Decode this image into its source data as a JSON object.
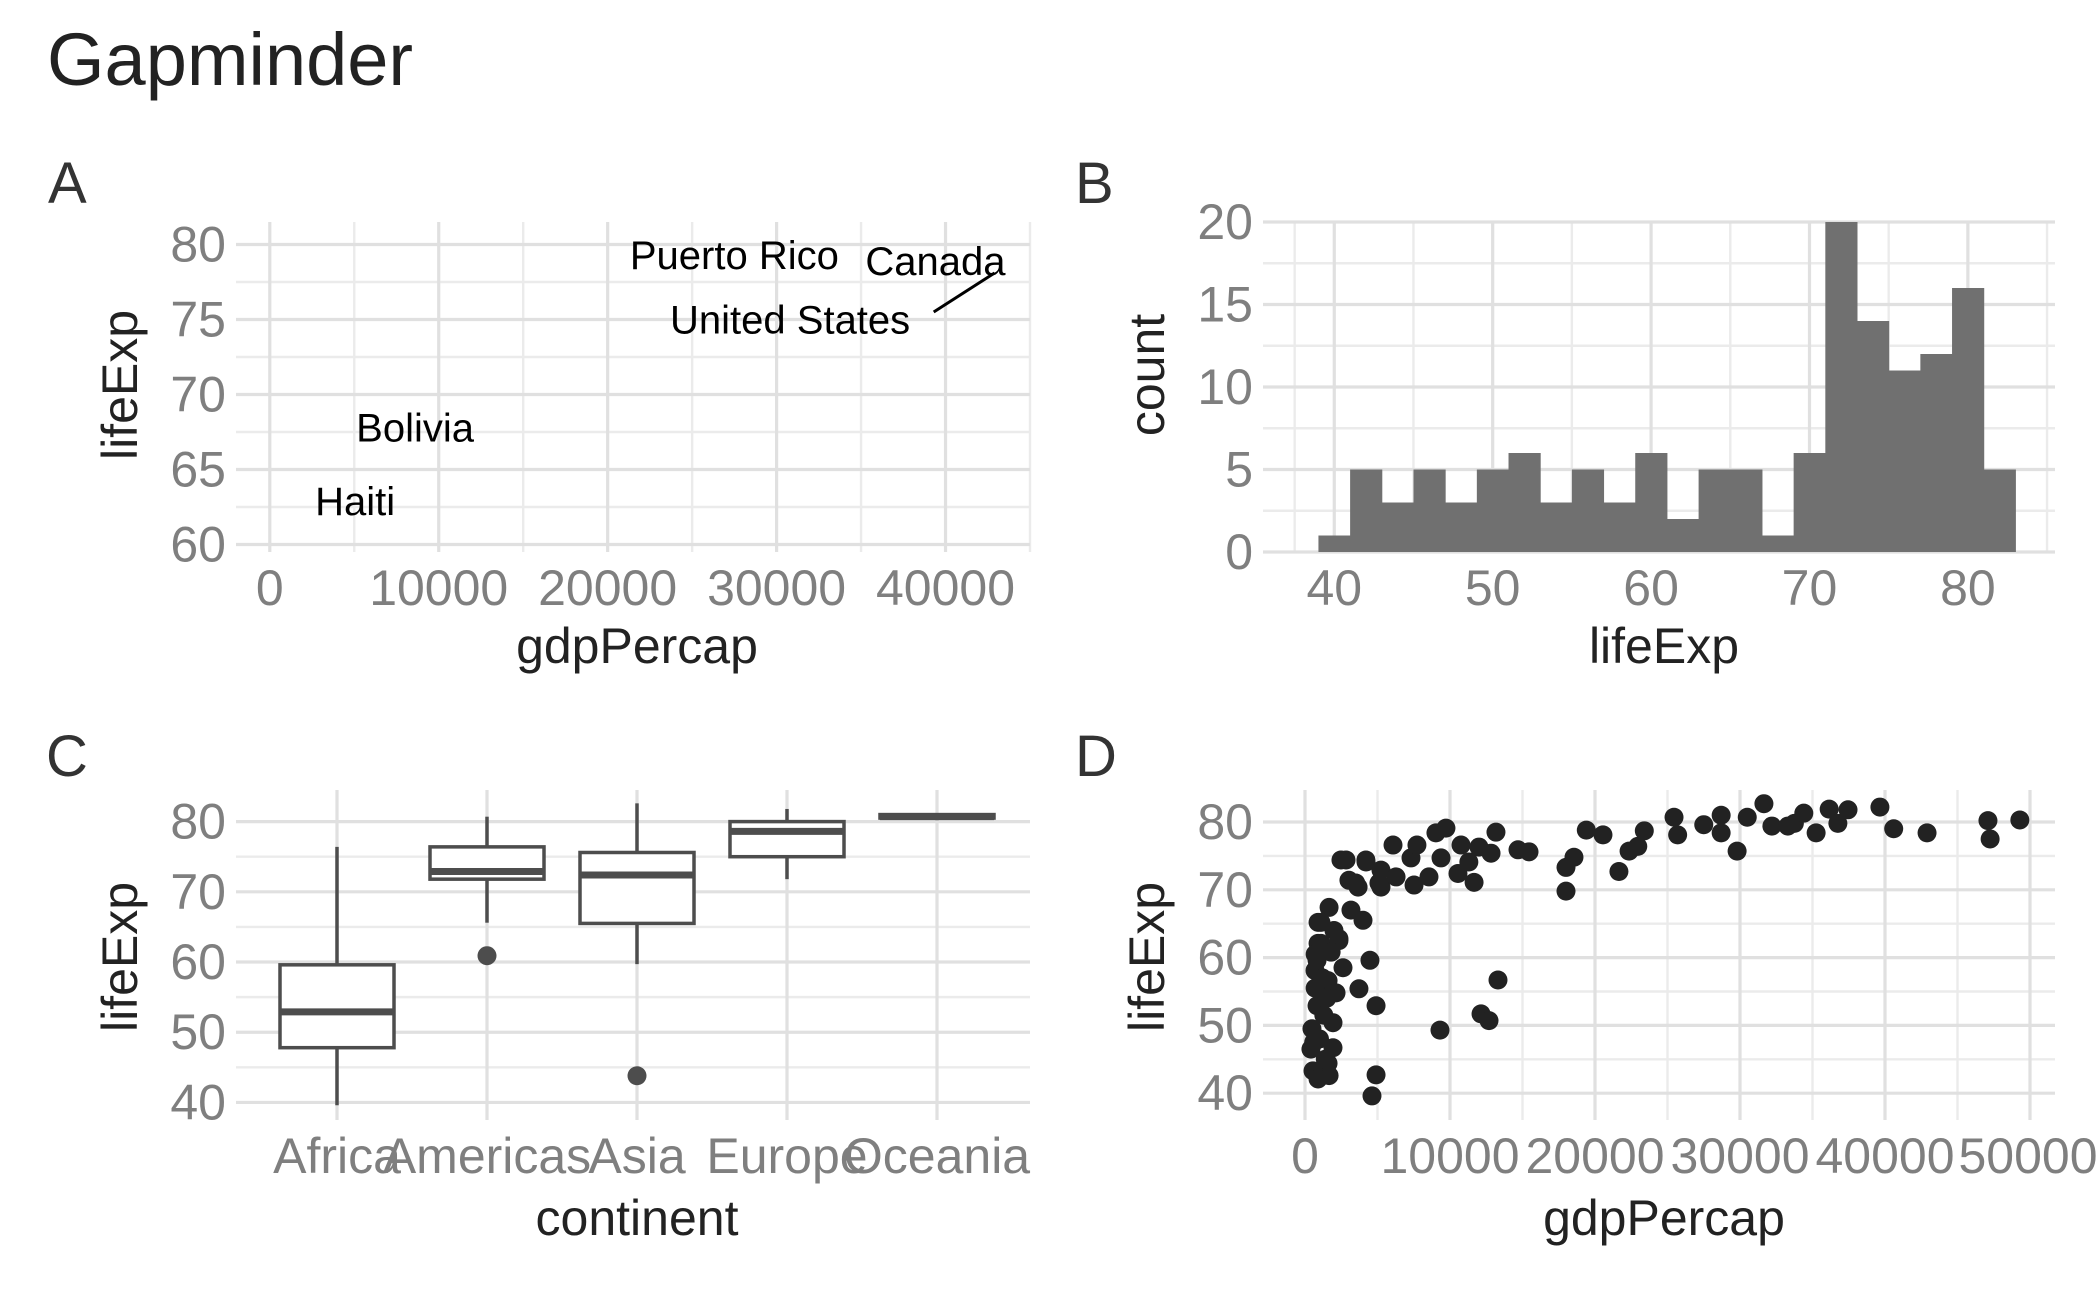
{
  "title": "Gapminder",
  "chart_data": [
    {
      "tag": "A",
      "type": "scatter",
      "subtype": "text-labels",
      "xlabel": "gdpPercap",
      "ylabel": "lifeExp",
      "xlim": [
        -2000,
        45000
      ],
      "ylim": [
        59.5,
        81.5
      ],
      "xticks": [
        0,
        10000,
        20000,
        30000,
        40000
      ],
      "xtick_labels": [
        "0",
        "10000",
        "20000",
        "30000",
        "40000"
      ],
      "yticks": [
        60,
        65,
        70,
        75,
        80
      ],
      "ytick_labels": [
        "60",
        "65",
        "70",
        "75",
        "80"
      ],
      "grid": true,
      "labels": [
        {
          "text": "Puerto Rico",
          "x": 27500,
          "y": 79.3
        },
        {
          "text": "Canada",
          "x": 39400,
          "y": 78.9
        },
        {
          "text": "United States",
          "x": 30800,
          "y": 75.0
        },
        {
          "text": "Bolivia",
          "x": 8600,
          "y": 67.8
        },
        {
          "text": "Haiti",
          "x": 5050,
          "y": 62.9
        }
      ],
      "segments": [
        {
          "from": [
            39300,
            75.5
          ],
          "to": [
            42900,
            78.1
          ]
        }
      ]
    },
    {
      "tag": "B",
      "type": "bar",
      "subtype": "histogram",
      "xlabel": "lifeExp",
      "ylabel": "count",
      "bin_width": 2,
      "bin_start": 39,
      "values": [
        1,
        5,
        3,
        5,
        3,
        5,
        6,
        3,
        5,
        3,
        6,
        2,
        5,
        5,
        1,
        6,
        20,
        14,
        11,
        12,
        16,
        5
      ],
      "xlim": [
        35.5,
        85.5
      ],
      "ylim": [
        0,
        20
      ],
      "xticks": [
        40,
        50,
        60,
        70,
        80
      ],
      "xtick_labels": [
        "40",
        "50",
        "60",
        "70",
        "80"
      ],
      "yticks": [
        0,
        5,
        10,
        15,
        20
      ],
      "ytick_labels": [
        "0",
        "5",
        "10",
        "15",
        "20"
      ],
      "grid": true,
      "fill": "#707070"
    },
    {
      "tag": "C",
      "type": "box",
      "xlabel": "continent",
      "ylabel": "lifeExp",
      "categories": [
        "Africa",
        "Americas",
        "Asia",
        "Europe",
        "Oceania"
      ],
      "boxes": [
        {
          "lower_whisker": 39.6,
          "q1": 47.8,
          "median": 52.9,
          "q3": 59.6,
          "upper_whisker": 76.4,
          "outliers": []
        },
        {
          "lower_whisker": 65.6,
          "q1": 71.8,
          "median": 72.9,
          "q3": 76.4,
          "upper_whisker": 80.7,
          "outliers": [
            60.9
          ]
        },
        {
          "lower_whisker": 59.7,
          "q1": 65.5,
          "median": 72.4,
          "q3": 75.6,
          "upper_whisker": 82.6,
          "outliers": [
            43.8
          ]
        },
        {
          "lower_whisker": 71.8,
          "q1": 75.0,
          "median": 78.6,
          "q3": 80.0,
          "upper_whisker": 81.8,
          "outliers": []
        },
        {
          "lower_whisker": 80.2,
          "q1": 80.5,
          "median": 80.7,
          "q3": 81.0,
          "upper_whisker": 81.2,
          "outliers": []
        }
      ],
      "ylim": [
        37.5,
        84.5
      ],
      "yticks": [
        40,
        50,
        60,
        70,
        80
      ],
      "ytick_labels": [
        "40",
        "50",
        "60",
        "70",
        "80"
      ],
      "grid": true,
      "color": "#4d4d4d"
    },
    {
      "tag": "D",
      "type": "scatter",
      "xlabel": "gdpPercap",
      "ylabel": "lifeExp",
      "xlim": [
        -2500,
        51500
      ],
      "ylim": [
        37.5,
        84.5
      ],
      "xticks": [
        0,
        10000,
        20000,
        30000,
        40000,
        50000
      ],
      "xtick_labels": [
        "0",
        "10000",
        "20000",
        "30000",
        "40000",
        "50000"
      ],
      "yticks": [
        40,
        50,
        60,
        70,
        80
      ],
      "ytick_labels": [
        "40",
        "50",
        "60",
        "70",
        "80"
      ],
      "grid": true,
      "color": "#222222",
      "points": [
        [
          19400,
          78.8
        ],
        [
          20550,
          78.1
        ],
        [
          18550,
          74.8
        ],
        [
          18000,
          73.3
        ],
        [
          18000,
          69.8
        ],
        [
          21650,
          72.7
        ],
        [
          22350,
          75.7
        ],
        [
          22950,
          76.4
        ],
        [
          23400,
          78.7
        ],
        [
          25450,
          80.7
        ],
        [
          25700,
          78.1
        ],
        [
          27500,
          79.6
        ],
        [
          28700,
          81.0
        ],
        [
          28700,
          78.4
        ],
        [
          29800,
          75.7
        ],
        [
          30500,
          80.7
        ],
        [
          31650,
          82.7
        ],
        [
          32200,
          79.4
        ],
        [
          33300,
          79.4
        ],
        [
          33750,
          79.8
        ],
        [
          34400,
          81.3
        ],
        [
          35250,
          78.4
        ],
        [
          36150,
          81.9
        ],
        [
          36750,
          79.8
        ],
        [
          37450,
          81.8
        ],
        [
          39650,
          82.2
        ],
        [
          40600,
          79.0
        ],
        [
          42900,
          78.4
        ],
        [
          47100,
          80.2
        ],
        [
          47250,
          77.5
        ],
        [
          49300,
          80.3
        ],
        [
          2830,
          74.4
        ],
        [
          3500,
          71.0
        ],
        [
          4200,
          74.4
        ],
        [
          5240,
          70.4
        ],
        [
          5240,
          72.9
        ],
        [
          6070,
          76.6
        ],
        [
          6280,
          71.9
        ],
        [
          7310,
          74.7
        ],
        [
          7720,
          76.6
        ],
        [
          7520,
          70.7
        ],
        [
          8550,
          71.9
        ],
        [
          9030,
          78.4
        ],
        [
          9720,
          79.1
        ],
        [
          9380,
          74.7
        ],
        [
          10550,
          72.4
        ],
        [
          10760,
          76.6
        ],
        [
          11660,
          71.1
        ],
        [
          11300,
          74.1
        ],
        [
          12000,
          76.3
        ],
        [
          12830,
          75.4
        ],
        [
          13170,
          78.5
        ],
        [
          14690,
          75.9
        ],
        [
          15450,
          75.6
        ],
        [
          2480,
          74.4
        ],
        [
          3030,
          71.4
        ],
        [
          3660,
          70.4
        ],
        [
          4210,
          74.1
        ],
        [
          5100,
          71.0
        ],
        [
          1660,
          67.4
        ],
        [
          3170,
          67.0
        ],
        [
          4000,
          65.5
        ],
        [
          900,
          65.2
        ],
        [
          2340,
          62.8
        ],
        [
          900,
          62.1
        ],
        [
          4480,
          59.6
        ],
        [
          1100,
          65.2
        ],
        [
          1100,
          62.1
        ],
        [
          2340,
          62.5
        ],
        [
          830,
          59.6
        ],
        [
          2620,
          58.5
        ],
        [
          690,
          58.1
        ],
        [
          1590,
          56.6
        ],
        [
          3720,
          55.4
        ],
        [
          2140,
          54.8
        ],
        [
          4900,
          52.9
        ],
        [
          830,
          52.9
        ],
        [
          1930,
          50.4
        ],
        [
          480,
          49.5
        ],
        [
          9310,
          49.3
        ],
        [
          1930,
          46.7
        ],
        [
          410,
          46.5
        ],
        [
          1590,
          44.4
        ],
        [
          550,
          43.3
        ],
        [
          1660,
          42.6
        ],
        [
          900,
          42.1
        ],
        [
          4900,
          42.7
        ],
        [
          4620,
          39.6
        ],
        [
          13310,
          56.7
        ],
        [
          12140,
          51.7
        ],
        [
          12690,
          50.7
        ],
        [
          700,
          60.5
        ],
        [
          1200,
          57.0
        ],
        [
          1500,
          54.0
        ],
        [
          700,
          55.5
        ],
        [
          1000,
          48.0
        ],
        [
          1300,
          51.5
        ],
        [
          1800,
          60.8
        ],
        [
          2000,
          64.0
        ],
        [
          600,
          47.5
        ],
        [
          1400,
          45.0
        ]
      ]
    }
  ]
}
